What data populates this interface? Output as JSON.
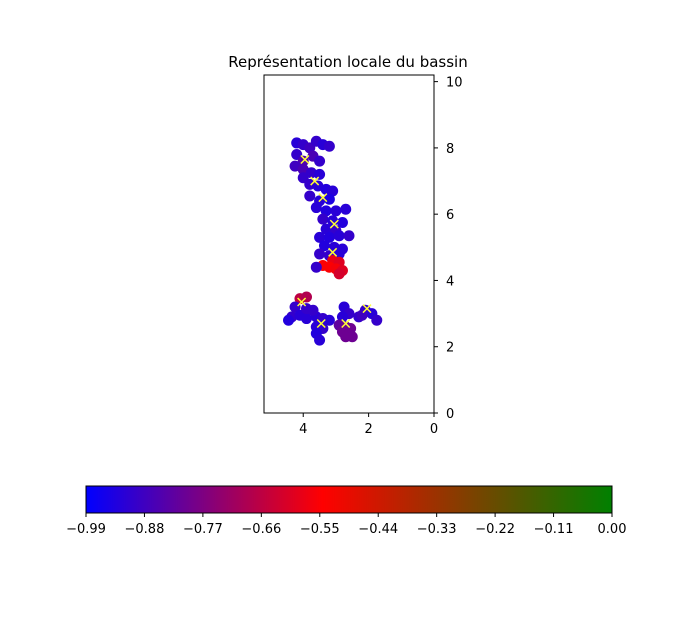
{
  "chart_data": {
    "type": "scatter",
    "title": "Représentation locale du bassin",
    "xlabel": "",
    "ylabel": "",
    "xlim": [
      5.2,
      0
    ],
    "ylim": [
      0,
      10.2
    ],
    "x_axis_inverted": true,
    "y_axis_side": "right",
    "x_ticks": [
      "4",
      "2",
      "0"
    ],
    "y_ticks": [
      "0",
      "2",
      "4",
      "6",
      "8",
      "10"
    ],
    "grid": false,
    "marker_color": "#ffff33",
    "series": [
      {
        "marker": "o",
        "points": [
          {
            "x": 4.2,
            "y": 8.15,
            "c": -0.92
          },
          {
            "x": 4.0,
            "y": 8.1,
            "c": -0.9
          },
          {
            "x": 3.8,
            "y": 8.0,
            "c": -0.88
          },
          {
            "x": 3.6,
            "y": 8.2,
            "c": -0.9
          },
          {
            "x": 3.4,
            "y": 8.1,
            "c": -0.92
          },
          {
            "x": 3.2,
            "y": 8.05,
            "c": -0.9
          },
          {
            "x": 4.2,
            "y": 7.8,
            "c": -0.9
          },
          {
            "x": 4.0,
            "y": 7.6,
            "c": -0.85
          },
          {
            "x": 3.7,
            "y": 7.75,
            "c": -0.86
          },
          {
            "x": 3.5,
            "y": 7.6,
            "c": -0.9
          },
          {
            "x": 4.25,
            "y": 7.45,
            "c": -0.88
          },
          {
            "x": 4.0,
            "y": 7.35,
            "c": -0.86
          },
          {
            "x": 3.75,
            "y": 7.25,
            "c": -0.9
          },
          {
            "x": 3.5,
            "y": 7.2,
            "c": -0.92
          },
          {
            "x": 4.0,
            "y": 7.1,
            "c": -0.9
          },
          {
            "x": 3.8,
            "y": 6.9,
            "c": -0.9
          },
          {
            "x": 3.55,
            "y": 6.85,
            "c": -0.92
          },
          {
            "x": 3.3,
            "y": 6.75,
            "c": -0.93
          },
          {
            "x": 3.1,
            "y": 6.7,
            "c": -0.92
          },
          {
            "x": 3.8,
            "y": 6.55,
            "c": -0.9
          },
          {
            "x": 3.5,
            "y": 6.4,
            "c": -0.92
          },
          {
            "x": 3.2,
            "y": 6.45,
            "c": -0.94
          },
          {
            "x": 3.6,
            "y": 6.2,
            "c": -0.92
          },
          {
            "x": 3.3,
            "y": 6.1,
            "c": -0.93
          },
          {
            "x": 3.0,
            "y": 6.1,
            "c": -0.92
          },
          {
            "x": 2.7,
            "y": 6.15,
            "c": -0.92
          },
          {
            "x": 3.4,
            "y": 5.85,
            "c": -0.9
          },
          {
            "x": 3.1,
            "y": 5.8,
            "c": -0.92
          },
          {
            "x": 2.8,
            "y": 5.75,
            "c": -0.93
          },
          {
            "x": 3.3,
            "y": 5.55,
            "c": -0.92
          },
          {
            "x": 3.0,
            "y": 5.5,
            "c": -0.9
          },
          {
            "x": 3.5,
            "y": 5.3,
            "c": -0.92
          },
          {
            "x": 3.2,
            "y": 5.3,
            "c": -0.93
          },
          {
            "x": 2.9,
            "y": 5.35,
            "c": -0.92
          },
          {
            "x": 2.6,
            "y": 5.35,
            "c": -0.9
          },
          {
            "x": 3.35,
            "y": 5.05,
            "c": -0.93
          },
          {
            "x": 3.05,
            "y": 5.0,
            "c": -0.92
          },
          {
            "x": 2.8,
            "y": 4.95,
            "c": -0.92
          },
          {
            "x": 3.5,
            "y": 4.8,
            "c": -0.9
          },
          {
            "x": 3.2,
            "y": 4.75,
            "c": -0.9
          },
          {
            "x": 2.9,
            "y": 4.8,
            "c": -0.92
          },
          {
            "x": 3.1,
            "y": 4.6,
            "c": -0.58
          },
          {
            "x": 2.9,
            "y": 4.55,
            "c": -0.6
          },
          {
            "x": 3.4,
            "y": 4.45,
            "c": -0.55
          },
          {
            "x": 3.2,
            "y": 4.4,
            "c": -0.55
          },
          {
            "x": 3.0,
            "y": 4.35,
            "c": -0.56
          },
          {
            "x": 2.8,
            "y": 4.3,
            "c": -0.6
          },
          {
            "x": 2.9,
            "y": 4.2,
            "c": -0.62
          },
          {
            "x": 3.6,
            "y": 4.4,
            "c": -0.9
          },
          {
            "x": 4.1,
            "y": 3.45,
            "c": -0.66
          },
          {
            "x": 3.9,
            "y": 3.5,
            "c": -0.68
          },
          {
            "x": 4.25,
            "y": 3.2,
            "c": -0.9
          },
          {
            "x": 4.35,
            "y": 2.9,
            "c": -0.9
          },
          {
            "x": 4.1,
            "y": 2.95,
            "c": -0.92
          },
          {
            "x": 4.45,
            "y": 2.8,
            "c": -0.93
          },
          {
            "x": 3.9,
            "y": 2.85,
            "c": -0.92
          },
          {
            "x": 3.6,
            "y": 2.9,
            "c": -0.92
          },
          {
            "x": 3.4,
            "y": 2.85,
            "c": -0.9
          },
          {
            "x": 3.2,
            "y": 2.8,
            "c": -0.92
          },
          {
            "x": 3.6,
            "y": 2.6,
            "c": -0.92
          },
          {
            "x": 3.4,
            "y": 2.55,
            "c": -0.9
          },
          {
            "x": 3.6,
            "y": 2.4,
            "c": -0.93
          },
          {
            "x": 3.5,
            "y": 2.2,
            "c": -0.92
          },
          {
            "x": 3.7,
            "y": 3.1,
            "c": -0.9
          },
          {
            "x": 3.9,
            "y": 3.15,
            "c": -0.9
          },
          {
            "x": 2.75,
            "y": 3.2,
            "c": -0.92
          },
          {
            "x": 2.6,
            "y": 3.0,
            "c": -0.9
          },
          {
            "x": 2.8,
            "y": 2.9,
            "c": -0.92
          },
          {
            "x": 2.9,
            "y": 2.65,
            "c": -0.82
          },
          {
            "x": 2.7,
            "y": 2.6,
            "c": -0.8
          },
          {
            "x": 2.55,
            "y": 2.55,
            "c": -0.8
          },
          {
            "x": 2.8,
            "y": 2.45,
            "c": -0.8
          },
          {
            "x": 2.6,
            "y": 2.4,
            "c": -0.8
          },
          {
            "x": 2.7,
            "y": 2.3,
            "c": -0.8
          },
          {
            "x": 2.5,
            "y": 2.3,
            "c": -0.8
          },
          {
            "x": 2.3,
            "y": 2.9,
            "c": -0.9
          },
          {
            "x": 2.1,
            "y": 3.1,
            "c": -0.9
          },
          {
            "x": 1.9,
            "y": 3.0,
            "c": -0.92
          },
          {
            "x": 1.75,
            "y": 2.8,
            "c": -0.9
          },
          {
            "x": 2.2,
            "y": 2.95,
            "c": -0.88
          }
        ]
      },
      {
        "marker": "x",
        "points": [
          {
            "x": 3.95,
            "y": 7.65
          },
          {
            "x": 3.65,
            "y": 7.0
          },
          {
            "x": 3.4,
            "y": 6.5
          },
          {
            "x": 3.05,
            "y": 5.7
          },
          {
            "x": 3.1,
            "y": 4.85
          },
          {
            "x": 4.05,
            "y": 3.35
          },
          {
            "x": 3.45,
            "y": 2.7
          },
          {
            "x": 2.7,
            "y": 2.7
          },
          {
            "x": 2.05,
            "y": 3.15
          }
        ]
      }
    ],
    "colorbar": {
      "orientation": "horizontal",
      "range": [
        -0.99,
        0.0
      ],
      "ticks": [
        "−0.99",
        "−0.88",
        "−0.77",
        "−0.66",
        "−0.55",
        "−0.44",
        "−0.33",
        "−0.22",
        "−0.11",
        "0.00"
      ],
      "colors": [
        "#0000ff",
        "#ff0000",
        "#008000"
      ]
    }
  }
}
